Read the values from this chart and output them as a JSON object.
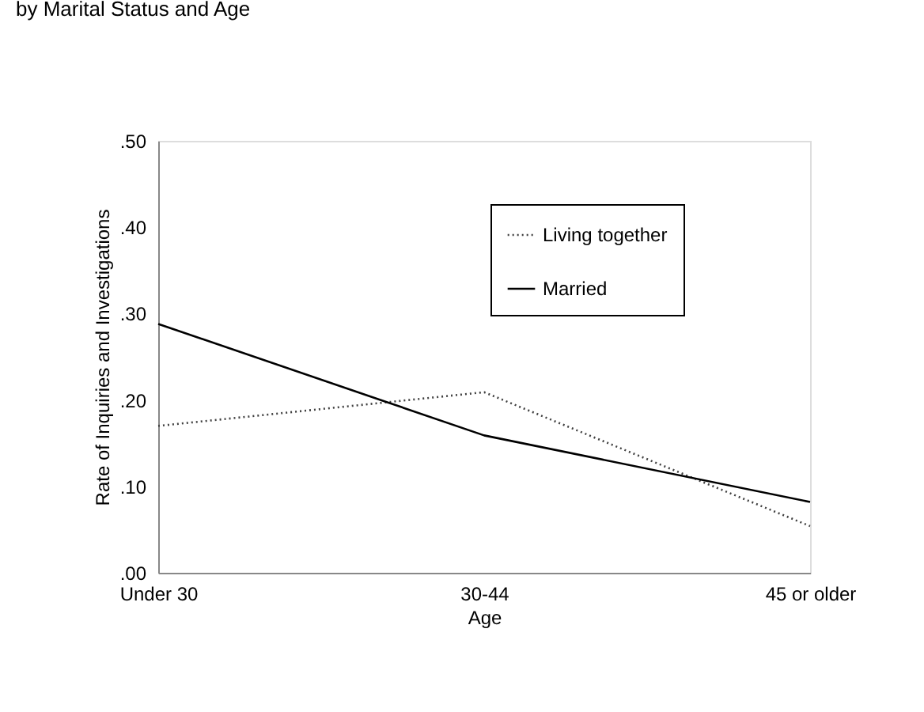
{
  "chart_data": {
    "type": "line",
    "title": "by Marital Status and Age",
    "xlabel": "Age",
    "ylabel": "Rate of Inquiries and Investigations",
    "categories": [
      "Under 30",
      "30-44",
      "45 or older"
    ],
    "series": [
      {
        "name": "Living together",
        "color": "#404040",
        "line_style": "dotted",
        "values": [
          0.17,
          0.209,
          0.054
        ]
      },
      {
        "name": "Married",
        "color": "#000000",
        "line_style": "solid",
        "values": [
          0.288,
          0.159,
          0.082
        ]
      }
    ],
    "ylim": [
      0,
      0.5
    ],
    "yticks": [
      {
        "value": 0,
        "label": ".00"
      },
      {
        "value": 0.1,
        "label": ".10"
      },
      {
        "value": 0.2,
        "label": ".20"
      },
      {
        "value": 0.3,
        "label": ".30"
      },
      {
        "value": 0.4,
        "label": ".40"
      },
      {
        "value": 0.5,
        "label": ".50"
      }
    ],
    "grid": false,
    "legend": "top right",
    "marker": "none"
  }
}
